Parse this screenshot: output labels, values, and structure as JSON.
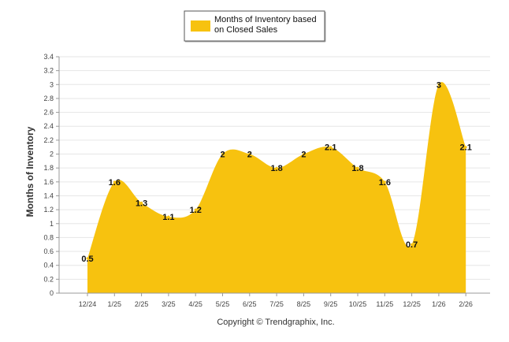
{
  "chart_data": {
    "type": "area",
    "series": [
      {
        "name": "Months of Inventory based on Closed Sales",
        "color": "#f7c20f",
        "values": [
          0.5,
          1.6,
          1.3,
          1.1,
          1.2,
          2,
          2,
          1.8,
          2,
          2.1,
          1.8,
          1.6,
          0.7,
          3,
          2.1
        ],
        "labels": [
          "0.5",
          "1.6",
          "1.3",
          "1.1",
          "1.2",
          "2",
          "2",
          "1.8",
          "2",
          "2.1",
          "1.8",
          "1.6",
          "0.7",
          "3",
          "2.1"
        ]
      }
    ],
    "categories": [
      "12/24",
      "1/25",
      "2/25",
      "3/25",
      "4/25",
      "5/25",
      "6/25",
      "7/25",
      "8/25",
      "9/25",
      "10/25",
      "11/25",
      "12/25",
      "1/26",
      "2/26"
    ],
    "ylabel": "Months of Inventory",
    "xlabel": "",
    "ylim": [
      0,
      3.4
    ],
    "yticks": [
      "0",
      "0.2",
      "0.4",
      "0.6",
      "0.8",
      "1",
      "1.2",
      "1.4",
      "1.6",
      "1.8",
      "2",
      "2.2",
      "2.4",
      "2.6",
      "2.8",
      "3",
      "3.2",
      "3.4"
    ],
    "grid": true,
    "legend_position": "top-center"
  },
  "legend": {
    "line1": "Months of Inventory based",
    "line2": "on Closed Sales"
  },
  "footer": {
    "copyright": "Copyright © Trendgraphix, Inc."
  }
}
